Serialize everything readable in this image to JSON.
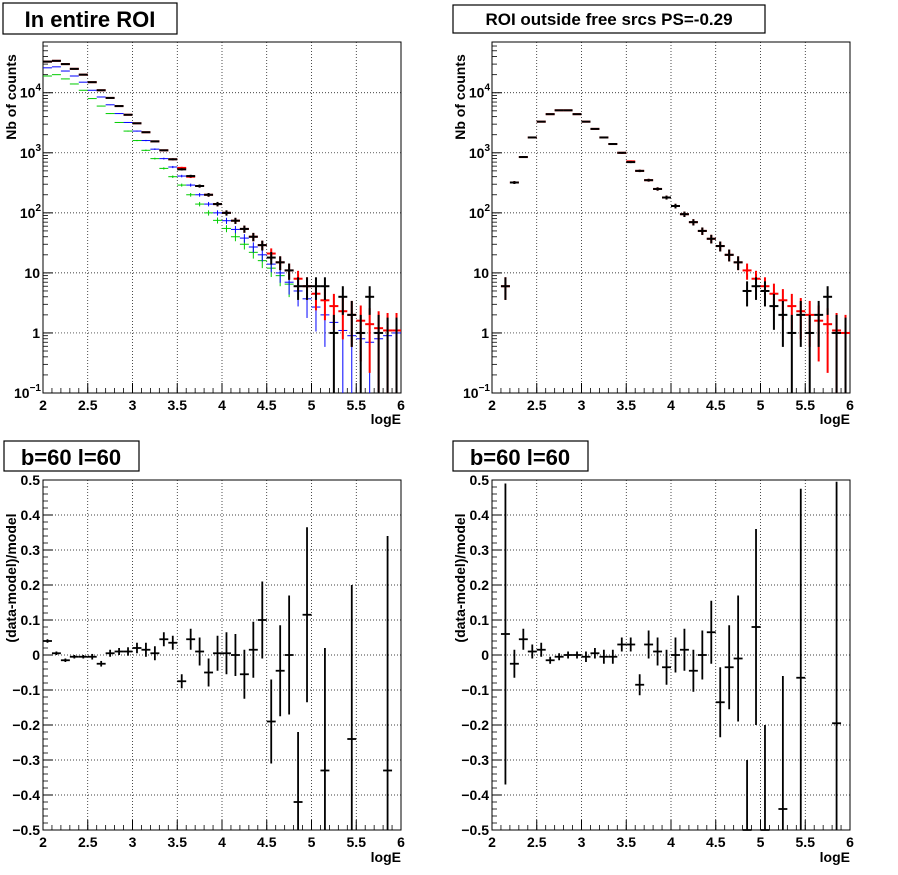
{
  "panels": [
    {
      "title": "In entire ROI",
      "chart_data": {
        "type": "histogram-errorbar",
        "yscale": "log",
        "xlim": [
          2,
          6
        ],
        "ylim": [
          0.1,
          70000
        ],
        "xticks": [
          "2",
          "2.5",
          "3",
          "3.5",
          "4",
          "4.5",
          "5",
          "5.5",
          "6"
        ],
        "yticks": [
          {
            "v": 0.1,
            "label": "10",
            "sup": "−1"
          },
          {
            "v": 1,
            "label": "1",
            "sup": ""
          },
          {
            "v": 10,
            "label": "10",
            "sup": ""
          },
          {
            "v": 100,
            "label": "10",
            "sup": "2"
          },
          {
            "v": 1000,
            "label": "10",
            "sup": "3"
          },
          {
            "v": 10000,
            "label": "10",
            "sup": "4"
          }
        ],
        "xlabel": "logE",
        "ylabel": "Nb of counts",
        "grid": true,
        "series": [
          {
            "name": "green",
            "color": "#00cc00",
            "x": [
              2.05,
              2.15,
              2.25,
              2.35,
              2.45,
              2.55,
              2.65,
              2.75,
              2.85,
              2.95,
              3.05,
              3.15,
              3.25,
              3.35,
              3.45,
              3.55,
              3.65,
              3.75,
              3.85,
              3.95,
              4.05,
              4.15,
              4.25,
              4.35,
              4.45,
              4.55,
              4.65,
              4.75
            ],
            "y": [
              19000,
              20000,
              17000,
              14000,
              11000,
              8000,
              6000,
              4500,
              3200,
              2300,
              1600,
              1100,
              800,
              550,
              400,
              290,
              200,
              140,
              100,
              75,
              55,
              40,
              30,
              22,
              16,
              12,
              9,
              6.5
            ]
          },
          {
            "name": "blue",
            "color": "#0000ff",
            "x": [
              2.05,
              2.15,
              2.25,
              2.35,
              2.45,
              2.55,
              2.65,
              2.75,
              2.85,
              2.95,
              3.05,
              3.15,
              3.25,
              3.35,
              3.45,
              3.55,
              3.65,
              3.75,
              3.85,
              3.95,
              4.05,
              4.15,
              4.25,
              4.35,
              4.45,
              4.55,
              4.65,
              4.75,
              4.85,
              4.95,
              5.05,
              5.15,
              5.25,
              5.35,
              5.45,
              5.55,
              5.65,
              5.75,
              5.85,
              5.95
            ],
            "y": [
              26000,
              27000,
              23000,
              19000,
              15000,
              11000,
              8500,
              6300,
              4500,
              3200,
              2300,
              1600,
              1150,
              800,
              580,
              410,
              290,
              200,
              140,
              100,
              74,
              53,
              38,
              27,
              20,
              14,
              10,
              7,
              5,
              3.7,
              2.7,
              2,
              1.5,
              1.1,
              0.9,
              0.8,
              0.7,
              0.8,
              0.9,
              1
            ]
          },
          {
            "name": "red",
            "color": "#ff0000",
            "x": [
              2.05,
              2.15,
              2.25,
              2.35,
              2.45,
              2.55,
              2.65,
              2.75,
              2.85,
              2.95,
              3.05,
              3.15,
              3.25,
              3.35,
              3.45,
              3.55,
              3.65,
              3.75,
              3.85,
              3.95,
              4.05,
              4.15,
              4.25,
              4.35,
              4.45,
              4.55,
              4.65,
              4.75,
              4.85,
              4.95,
              5.05,
              5.15,
              5.25,
              5.35,
              5.45,
              5.55,
              5.65,
              5.75,
              5.85,
              5.95
            ],
            "y": [
              33000,
              34000,
              30000,
              25000,
              20000,
              15000,
              11000,
              8200,
              6000,
              4300,
              3100,
              2200,
              1550,
              1100,
              780,
              560,
              400,
              280,
              200,
              140,
              100,
              74,
              54,
              40,
              29,
              21,
              15,
              11,
              8,
              6,
              4.5,
              3.5,
              2.8,
              2.3,
              2,
              1.6,
              1.4,
              1.2,
              1.1,
              1.1
            ]
          },
          {
            "name": "black",
            "color": "#000000",
            "x": [
              2.05,
              2.15,
              2.25,
              2.35,
              2.45,
              2.55,
              2.65,
              2.75,
              2.85,
              2.95,
              3.05,
              3.15,
              3.25,
              3.35,
              3.45,
              3.55,
              3.65,
              3.75,
              3.85,
              3.95,
              4.05,
              4.15,
              4.25,
              4.35,
              4.45,
              4.55,
              4.65,
              4.75,
              4.85,
              4.95,
              5.05,
              5.15,
              5.25,
              5.35,
              5.45,
              5.55,
              5.65,
              5.75,
              5.85,
              5.95
            ],
            "y": [
              33000,
              34000,
              30000,
              25000,
              20000,
              15000,
              11000,
              8200,
              6000,
              4300,
              3100,
              2200,
              1550,
              1100,
              780,
              530,
              410,
              280,
              200,
              140,
              100,
              74,
              54,
              40,
              29,
              18,
              15,
              11,
              6,
              6,
              6,
              6,
              1,
              4,
              2,
              1,
              4,
              1,
              0,
              0
            ]
          }
        ]
      }
    },
    {
      "title": "ROI outside free srcs PS=-0.29",
      "chart_data": {
        "type": "histogram-errorbar",
        "yscale": "log",
        "xlim": [
          2,
          6
        ],
        "ylim": [
          0.1,
          70000
        ],
        "xticks": [
          "2",
          "2.5",
          "3",
          "3.5",
          "4",
          "4.5",
          "5",
          "5.5",
          "6"
        ],
        "yticks": [
          {
            "v": 0.1,
            "label": "10",
            "sup": "−1"
          },
          {
            "v": 1,
            "label": "1",
            "sup": ""
          },
          {
            "v": 10,
            "label": "10",
            "sup": ""
          },
          {
            "v": 100,
            "label": "10",
            "sup": "2"
          },
          {
            "v": 1000,
            "label": "10",
            "sup": "3"
          },
          {
            "v": 10000,
            "label": "10",
            "sup": "4"
          }
        ],
        "xlabel": "logE",
        "ylabel": "Nb of counts",
        "grid": true,
        "series": [
          {
            "name": "red",
            "color": "#ff0000",
            "x": [
              2.15,
              2.25,
              2.35,
              2.45,
              2.55,
              2.65,
              2.75,
              2.85,
              2.95,
              3.05,
              3.15,
              3.25,
              3.35,
              3.45,
              3.55,
              3.65,
              3.75,
              3.85,
              3.95,
              4.05,
              4.15,
              4.25,
              4.35,
              4.45,
              4.55,
              4.65,
              4.75,
              4.85,
              4.95,
              5.05,
              5.15,
              5.25,
              5.35,
              5.45,
              5.55,
              5.65,
              5.75,
              5.85,
              5.95
            ],
            "y": [
              6,
              320,
              850,
              1800,
              3300,
              4400,
              5100,
              5100,
              4400,
              3300,
              2500,
              1800,
              1400,
              1000,
              720,
              500,
              350,
              250,
              180,
              130,
              95,
              70,
              50,
              37,
              28,
              20,
              15,
              11,
              8,
              6,
              4.5,
              3.5,
              2.8,
              2.3,
              2,
              1.6,
              1.4,
              1.1,
              1
            ]
          },
          {
            "name": "black",
            "color": "#000000",
            "x": [
              2.15,
              2.25,
              2.35,
              2.45,
              2.55,
              2.65,
              2.75,
              2.85,
              2.95,
              3.05,
              3.15,
              3.25,
              3.35,
              3.45,
              3.55,
              3.65,
              3.75,
              3.85,
              3.95,
              4.05,
              4.15,
              4.25,
              4.35,
              4.45,
              4.55,
              4.65,
              4.75,
              4.85,
              4.95,
              5.05,
              5.15,
              5.25,
              5.35,
              5.45,
              5.55,
              5.65,
              5.75,
              5.85,
              5.95
            ],
            "y": [
              6,
              320,
              850,
              1800,
              3300,
              4400,
              5100,
              5100,
              4400,
              3300,
              2500,
              1800,
              1400,
              1000,
              700,
              500,
              350,
              250,
              180,
              130,
              95,
              70,
              50,
              37,
              28,
              20,
              15,
              5,
              6,
              5,
              2.8,
              2,
              1,
              2,
              1,
              2,
              4,
              1,
              0
            ]
          }
        ]
      }
    },
    {
      "title": "b=60 l=60",
      "chart_data": {
        "type": "errorbar",
        "yscale": "linear",
        "xlim": [
          2,
          6
        ],
        "ylim": [
          -0.5,
          0.5
        ],
        "xticks": [
          "2",
          "2.5",
          "3",
          "3.5",
          "4",
          "4.5",
          "5",
          "5.5",
          "6"
        ],
        "yticks": [
          {
            "v": -0.5,
            "label": "−0.5"
          },
          {
            "v": -0.4,
            "label": "−0.4"
          },
          {
            "v": -0.3,
            "label": "−0.3"
          },
          {
            "v": -0.2,
            "label": "−0.2"
          },
          {
            "v": -0.1,
            "label": "−0.1"
          },
          {
            "v": 0,
            "label": "0"
          },
          {
            "v": 0.1,
            "label": "0.1"
          },
          {
            "v": 0.2,
            "label": "0.2"
          },
          {
            "v": 0.3,
            "label": "0.3"
          },
          {
            "v": 0.4,
            "label": "0.4"
          },
          {
            "v": 0.5,
            "label": "0.5"
          }
        ],
        "xlabel": "logE",
        "ylabel": "(data-model)/model",
        "grid": true,
        "points": {
          "x": [
            2.05,
            2.15,
            2.25,
            2.35,
            2.45,
            2.55,
            2.65,
            2.75,
            2.85,
            2.95,
            3.05,
            3.15,
            3.25,
            3.35,
            3.45,
            3.55,
            3.65,
            3.75,
            3.85,
            3.95,
            4.05,
            4.15,
            4.25,
            4.35,
            4.45,
            4.55,
            4.65,
            4.75,
            4.85,
            4.95,
            5.15,
            5.45,
            5.85
          ],
          "y": [
            0.04,
            0.005,
            -0.015,
            -0.005,
            -0.005,
            -0.005,
            -0.025,
            0.005,
            0.01,
            0.01,
            0.02,
            0.015,
            0.005,
            0.045,
            0.035,
            -0.075,
            0.045,
            0.01,
            -0.05,
            0.005,
            0.005,
            0.0,
            -0.055,
            0.015,
            0.1,
            -0.19,
            -0.045,
            0.0,
            -0.42,
            0.115,
            -0.33,
            -0.24,
            -0.33
          ],
          "yerr": [
            0.005,
            0.005,
            0.005,
            0.005,
            0.005,
            0.008,
            0.008,
            0.01,
            0.01,
            0.012,
            0.015,
            0.02,
            0.02,
            0.02,
            0.02,
            0.02,
            0.03,
            0.04,
            0.04,
            0.05,
            0.06,
            0.06,
            0.07,
            0.08,
            0.11,
            0.12,
            0.13,
            0.17,
            0.2,
            0.25,
            0.35,
            0.44,
            0.67
          ]
        }
      }
    },
    {
      "title": "b=60 l=60",
      "chart_data": {
        "type": "errorbar",
        "yscale": "linear",
        "xlim": [
          2,
          6
        ],
        "ylim": [
          -0.5,
          0.5
        ],
        "xticks": [
          "2",
          "2.5",
          "3",
          "3.5",
          "4",
          "4.5",
          "5",
          "5.5",
          "6"
        ],
        "yticks": [
          {
            "v": -0.5,
            "label": "−0.5"
          },
          {
            "v": -0.4,
            "label": "−0.4"
          },
          {
            "v": -0.3,
            "label": "−0.3"
          },
          {
            "v": -0.2,
            "label": "−0.2"
          },
          {
            "v": -0.1,
            "label": "−0.1"
          },
          {
            "v": 0,
            "label": "0"
          },
          {
            "v": 0.1,
            "label": "0.1"
          },
          {
            "v": 0.2,
            "label": "0.2"
          },
          {
            "v": 0.3,
            "label": "0.3"
          },
          {
            "v": 0.4,
            "label": "0.4"
          },
          {
            "v": 0.5,
            "label": "0.5"
          }
        ],
        "xlabel": "logE",
        "ylabel": "(data-model)/model",
        "grid": true,
        "points": {
          "x": [
            2.15,
            2.25,
            2.35,
            2.45,
            2.55,
            2.65,
            2.75,
            2.85,
            2.95,
            3.05,
            3.15,
            3.25,
            3.35,
            3.45,
            3.55,
            3.65,
            3.75,
            3.85,
            3.95,
            4.05,
            4.15,
            4.25,
            4.35,
            4.45,
            4.55,
            4.65,
            4.75,
            4.85,
            4.95,
            5.05,
            5.25,
            5.45,
            5.85
          ],
          "y": [
            0.06,
            -0.025,
            0.045,
            0.01,
            0.015,
            -0.015,
            -0.005,
            0.0,
            0.0,
            -0.005,
            0.005,
            -0.005,
            -0.005,
            0.03,
            0.03,
            -0.085,
            0.03,
            0.01,
            -0.035,
            0.0,
            0.015,
            -0.045,
            0.0,
            0.065,
            -0.135,
            -0.035,
            -0.01,
            -0.5,
            0.08,
            -0.5,
            -0.44,
            -0.065,
            -0.195
          ],
          "yerr": [
            0.43,
            0.04,
            0.03,
            0.02,
            0.02,
            0.01,
            0.01,
            0.01,
            0.01,
            0.015,
            0.015,
            0.02,
            0.02,
            0.02,
            0.02,
            0.03,
            0.04,
            0.04,
            0.05,
            0.05,
            0.06,
            0.06,
            0.07,
            0.09,
            0.1,
            0.12,
            0.18,
            0.2,
            0.28,
            0.3,
            0.38,
            0.54,
            0.69
          ]
        }
      }
    }
  ]
}
